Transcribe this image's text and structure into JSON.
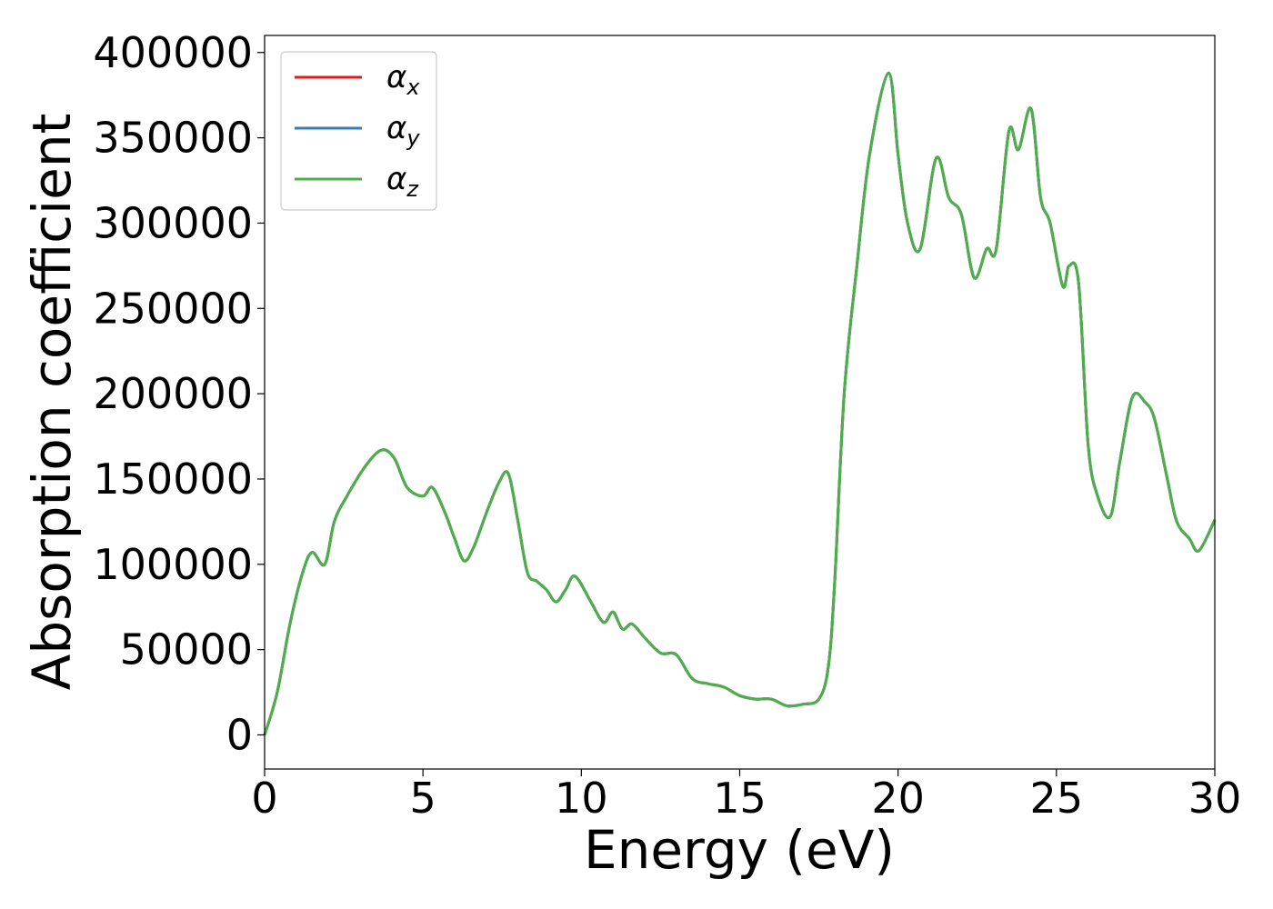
{
  "chart_data": {
    "type": "line",
    "xlabel": "Energy (eV)",
    "ylabel": "Absorption coefficient",
    "xlim": [
      0,
      30
    ],
    "ylim": [
      -20000,
      410000
    ],
    "xticks": [
      0,
      5,
      10,
      15,
      20,
      25,
      30
    ],
    "yticks": [
      0,
      50000,
      100000,
      150000,
      200000,
      250000,
      300000,
      350000,
      400000
    ],
    "grid": false,
    "legend_position": "top-left",
    "series": [
      {
        "name": "α",
        "subscript": "x",
        "color": "#e41a1c",
        "x": [
          0,
          0.4,
          0.8,
          1.2,
          1.5,
          1.9,
          2.2,
          2.6,
          3.2,
          3.7,
          4.1,
          4.5,
          5.0,
          5.3,
          5.7,
          6.0,
          6.3,
          6.6,
          7.0,
          7.4,
          7.7,
          8.0,
          8.3,
          8.6,
          8.9,
          9.2,
          9.5,
          9.8,
          10.3,
          10.7,
          11.0,
          11.3,
          11.6,
          12.0,
          12.5,
          13.0,
          13.5,
          14.0,
          14.5,
          15.0,
          15.5,
          16.0,
          16.5,
          17.0,
          17.5,
          17.8,
          18.0,
          18.3,
          18.7,
          19.1,
          19.7,
          20.0,
          20.3,
          20.7,
          21.2,
          21.6,
          22.0,
          22.4,
          22.8,
          23.1,
          23.5,
          23.8,
          24.2,
          24.5,
          24.8,
          25.2,
          25.4,
          25.7,
          26.0,
          26.3,
          26.7,
          27.0,
          27.4,
          27.8,
          28.1,
          28.5,
          28.8,
          29.2,
          29.5,
          30.0
        ],
        "y": [
          0,
          25000,
          65000,
          95000,
          107000,
          100000,
          125000,
          140000,
          158000,
          167000,
          162000,
          145000,
          140000,
          145000,
          130000,
          115000,
          102000,
          110000,
          130000,
          148000,
          153000,
          125000,
          95000,
          90000,
          85000,
          78000,
          85000,
          93000,
          78000,
          66000,
          72000,
          62000,
          65000,
          57000,
          48000,
          47000,
          33000,
          30000,
          28000,
          23000,
          21000,
          21000,
          17000,
          18000,
          21000,
          40000,
          90000,
          200000,
          275000,
          340000,
          388000,
          340000,
          300000,
          285000,
          338000,
          315000,
          305000,
          268000,
          285000,
          285000,
          354000,
          343000,
          367000,
          315000,
          300000,
          263000,
          275000,
          265000,
          170000,
          140000,
          128000,
          160000,
          198000,
          195000,
          185000,
          150000,
          125000,
          115000,
          108000,
          126000
        ]
      },
      {
        "name": "α",
        "subscript": "y",
        "color": "#377eb8",
        "x": [
          0,
          0.4,
          0.8,
          1.2,
          1.5,
          1.9,
          2.2,
          2.6,
          3.2,
          3.7,
          4.1,
          4.5,
          5.0,
          5.3,
          5.7,
          6.0,
          6.3,
          6.6,
          7.0,
          7.4,
          7.7,
          8.0,
          8.3,
          8.6,
          8.9,
          9.2,
          9.5,
          9.8,
          10.3,
          10.7,
          11.0,
          11.3,
          11.6,
          12.0,
          12.5,
          13.0,
          13.5,
          14.0,
          14.5,
          15.0,
          15.5,
          16.0,
          16.5,
          17.0,
          17.5,
          17.8,
          18.0,
          18.3,
          18.7,
          19.1,
          19.7,
          20.0,
          20.3,
          20.7,
          21.2,
          21.6,
          22.0,
          22.4,
          22.8,
          23.1,
          23.5,
          23.8,
          24.2,
          24.5,
          24.8,
          25.2,
          25.4,
          25.7,
          26.0,
          26.3,
          26.7,
          27.0,
          27.4,
          27.8,
          28.1,
          28.5,
          28.8,
          29.2,
          29.5,
          30.0
        ],
        "y": [
          0,
          25000,
          65000,
          95000,
          107000,
          100000,
          125000,
          140000,
          158000,
          167000,
          162000,
          145000,
          140000,
          145000,
          130000,
          115000,
          102000,
          110000,
          130000,
          148000,
          153000,
          125000,
          95000,
          90000,
          85000,
          78000,
          85000,
          93000,
          78000,
          66000,
          72000,
          62000,
          65000,
          57000,
          48000,
          47000,
          33000,
          30000,
          28000,
          23000,
          21000,
          21000,
          17000,
          18000,
          21000,
          40000,
          90000,
          200000,
          275000,
          340000,
          388000,
          340000,
          300000,
          285000,
          338000,
          315000,
          305000,
          268000,
          285000,
          285000,
          354000,
          343000,
          367000,
          315000,
          300000,
          263000,
          275000,
          265000,
          170000,
          140000,
          128000,
          160000,
          198000,
          195000,
          185000,
          150000,
          125000,
          115000,
          108000,
          126000
        ]
      },
      {
        "name": "α",
        "subscript": "z",
        "color": "#4daf4a",
        "x": [
          0,
          0.4,
          0.8,
          1.2,
          1.5,
          1.9,
          2.2,
          2.6,
          3.2,
          3.7,
          4.1,
          4.5,
          5.0,
          5.3,
          5.7,
          6.0,
          6.3,
          6.6,
          7.0,
          7.4,
          7.7,
          8.0,
          8.3,
          8.6,
          8.9,
          9.2,
          9.5,
          9.8,
          10.3,
          10.7,
          11.0,
          11.3,
          11.6,
          12.0,
          12.5,
          13.0,
          13.5,
          14.0,
          14.5,
          15.0,
          15.5,
          16.0,
          16.5,
          17.0,
          17.5,
          17.8,
          18.0,
          18.3,
          18.7,
          19.1,
          19.7,
          20.0,
          20.3,
          20.7,
          21.2,
          21.6,
          22.0,
          22.4,
          22.8,
          23.1,
          23.5,
          23.8,
          24.2,
          24.5,
          24.8,
          25.2,
          25.4,
          25.7,
          26.0,
          26.3,
          26.7,
          27.0,
          27.4,
          27.8,
          28.1,
          28.5,
          28.8,
          29.2,
          29.5,
          30.0
        ],
        "y": [
          0,
          25000,
          65000,
          95000,
          107000,
          100000,
          125000,
          140000,
          158000,
          167000,
          162000,
          145000,
          140000,
          145000,
          130000,
          115000,
          102000,
          110000,
          130000,
          148000,
          153000,
          125000,
          95000,
          90000,
          85000,
          78000,
          85000,
          93000,
          78000,
          66000,
          72000,
          62000,
          65000,
          57000,
          48000,
          47000,
          33000,
          30000,
          28000,
          23000,
          21000,
          21000,
          17000,
          18000,
          21000,
          40000,
          90000,
          200000,
          275000,
          340000,
          388000,
          340000,
          300000,
          285000,
          338000,
          315000,
          305000,
          268000,
          285000,
          285000,
          354000,
          343000,
          367000,
          315000,
          300000,
          263000,
          275000,
          265000,
          170000,
          140000,
          128000,
          160000,
          198000,
          195000,
          185000,
          150000,
          125000,
          115000,
          108000,
          126000
        ]
      }
    ]
  }
}
